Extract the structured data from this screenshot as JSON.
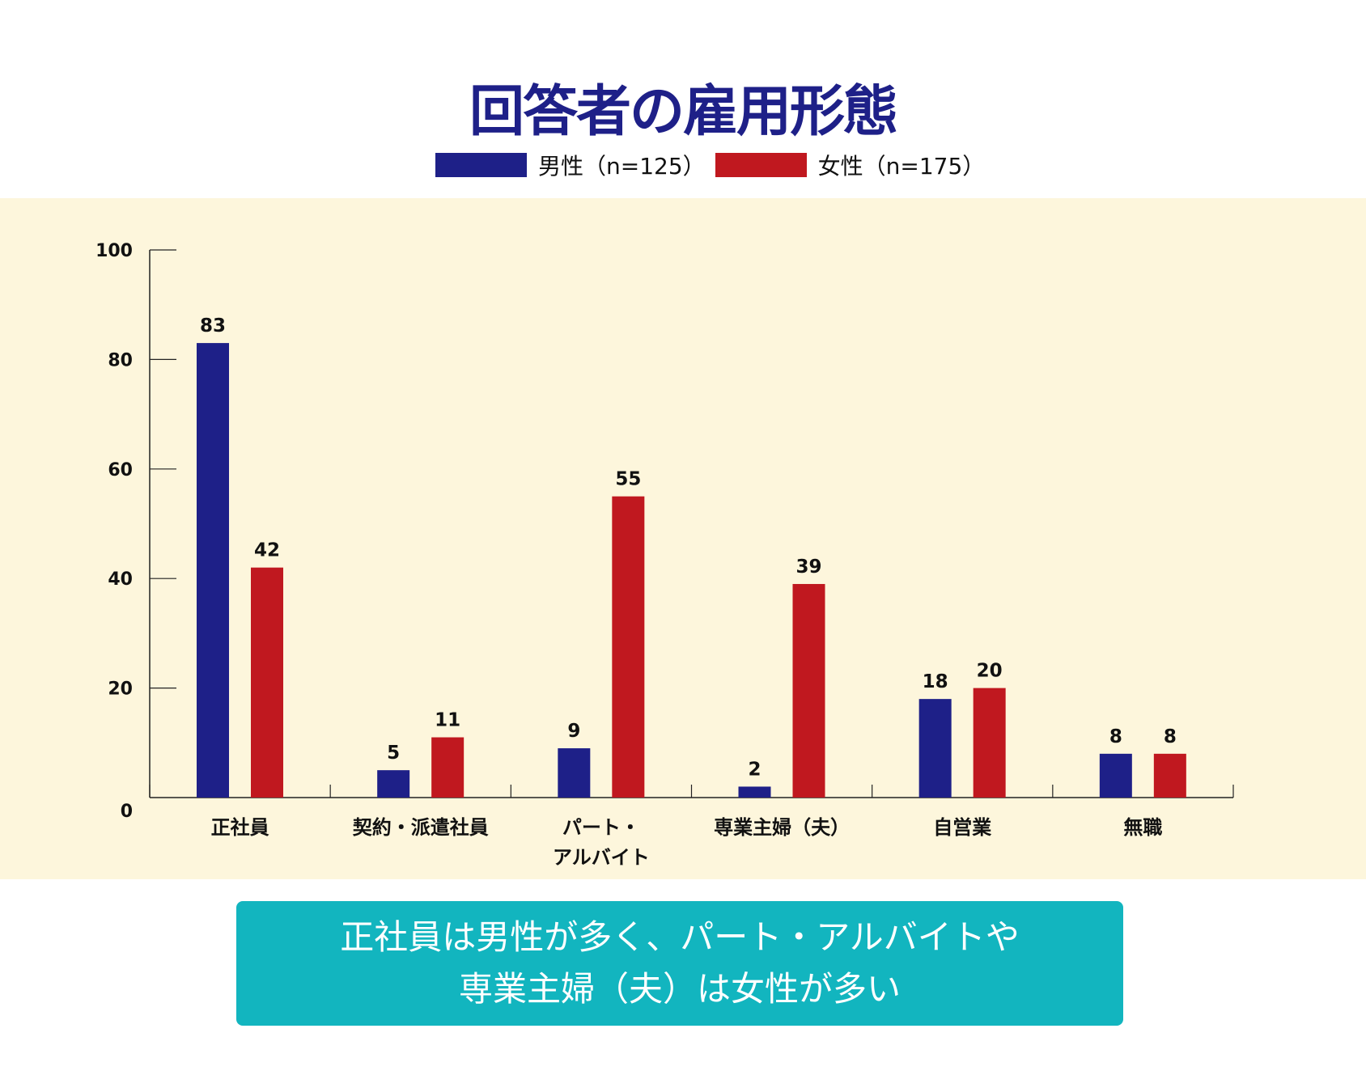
{
  "chart_data": {
    "type": "bar",
    "title": "回答者の雇用形態",
    "categories": [
      "正社員",
      "契約・派遣社員",
      "パート・\nアルバイト",
      "専業主婦（夫）",
      "自営業",
      "無職"
    ],
    "series": [
      {
        "name": "男性（n=125）",
        "color": "#1e2088",
        "values": [
          83,
          5,
          9,
          2,
          18,
          8
        ]
      },
      {
        "name": "女性（n=175）",
        "color": "#c0181f",
        "values": [
          42,
          11,
          55,
          39,
          20,
          8
        ]
      }
    ],
    "ylim": [
      0,
      100
    ],
    "yticks": [
      0,
      20,
      40,
      60,
      80,
      100
    ],
    "xlabel": "",
    "ylabel": "",
    "grid": false,
    "legend": "top-center"
  },
  "summary": {
    "line1": "正社員は男性が多く、パート・アルバイトや",
    "line2": "専業主婦（夫）は女性が多い"
  }
}
